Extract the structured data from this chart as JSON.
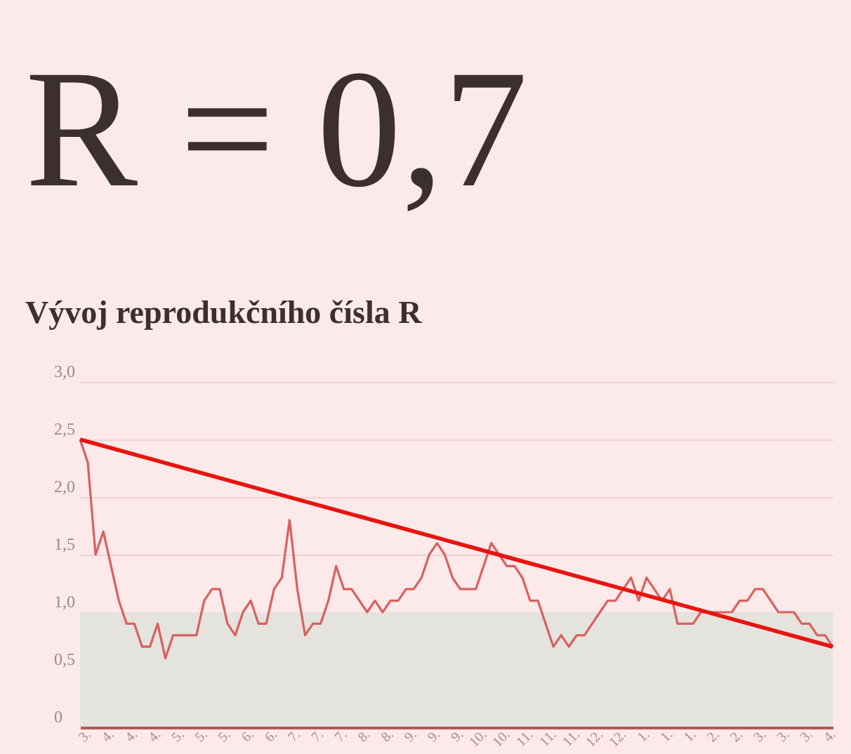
{
  "chart_data": {
    "type": "line",
    "title": "R = 0,7",
    "subtitle": "Vývoj reprodukčního čísla R",
    "categories": [
      null,
      "3.",
      null,
      null,
      "4.",
      null,
      null,
      "4.",
      null,
      null,
      "4.",
      null,
      null,
      "5.",
      null,
      null,
      "5.",
      null,
      null,
      "5.",
      null,
      null,
      "6.",
      null,
      null,
      "6.",
      null,
      null,
      "7.",
      null,
      null,
      "7.",
      null,
      null,
      "7.",
      null,
      null,
      "8.",
      null,
      null,
      "8.",
      null,
      null,
      "9.",
      null,
      null,
      "9.",
      null,
      null,
      "9.",
      null,
      null,
      "10.",
      null,
      null,
      "10.",
      null,
      null,
      "11.",
      null,
      null,
      "11.",
      null,
      null,
      "11.",
      null,
      null,
      "12.",
      null,
      null,
      "12.",
      null,
      null,
      "1.",
      null,
      null,
      "1.",
      null,
      null,
      "1.",
      null,
      null,
      "2.",
      null,
      null,
      "2.",
      null,
      null,
      "3.",
      null,
      null,
      "3.",
      null,
      null,
      "3.",
      null,
      null,
      "4."
    ],
    "ylim": [
      0,
      3
    ],
    "yticks": [
      0,
      {
        "value": 0.5,
        "label": "0,5"
      },
      {
        "value": 1,
        "label": "1,0"
      },
      {
        "value": 1.5,
        "label": "1,5"
      },
      {
        "value": 2,
        "label": "2,0"
      },
      {
        "value": 2.5,
        "label": "2,5"
      },
      {
        "value": 3,
        "label": "3,0"
      }
    ],
    "grid": "y",
    "line_style": "solid",
    "marker": "none",
    "bands": [
      {
        "axis": "y",
        "from": 0,
        "to": 1,
        "color": "#e5e3de"
      }
    ],
    "series": [
      {
        "color": "#d9605e",
        "values": [
          2.5,
          2.3,
          1.5,
          1.7,
          1.4,
          1.1,
          0.9,
          0.9,
          0.7,
          0.7,
          0.9,
          0.6,
          0.8,
          0.8,
          0.8,
          0.8,
          1.1,
          1.2,
          1.2,
          0.9,
          0.8,
          1.0,
          1.1,
          0.9,
          0.9,
          1.2,
          1.3,
          1.8,
          1.2,
          0.8,
          0.9,
          0.9,
          1.1,
          1.4,
          1.2,
          1.2,
          1.1,
          1.0,
          1.1,
          1.0,
          1.1,
          1.1,
          1.2,
          1.2,
          1.3,
          1.5,
          1.6,
          1.5,
          1.3,
          1.2,
          1.2,
          1.2,
          1.4,
          1.6,
          1.5,
          1.4,
          1.4,
          1.3,
          1.1,
          1.1,
          0.9,
          0.7,
          0.8,
          0.7,
          0.8,
          0.8,
          0.9,
          1.0,
          1.1,
          1.1,
          1.2,
          1.3,
          1.1,
          1.3,
          1.2,
          1.1,
          1.2,
          0.9,
          0.9,
          0.9,
          1.0,
          1.0,
          1.0,
          1.0,
          1.0,
          1.1,
          1.1,
          1.2,
          1.2,
          1.1,
          1.0,
          1.0,
          1.0,
          0.9,
          0.9,
          0.8,
          0.8,
          0.7
        ]
      },
      {
        "type": "line",
        "color": "#e8140f",
        "values": [
          2.5,
          null,
          null,
          null,
          null,
          null,
          null,
          null,
          null,
          null,
          null,
          null,
          null,
          null,
          null,
          null,
          null,
          null,
          null,
          null,
          null,
          null,
          null,
          null,
          null,
          null,
          null,
          null,
          null,
          null,
          null,
          null,
          null,
          null,
          null,
          null,
          null,
          null,
          null,
          null,
          null,
          null,
          null,
          null,
          null,
          null,
          null,
          null,
          null,
          null,
          null,
          null,
          null,
          null,
          null,
          null,
          null,
          null,
          null,
          null,
          null,
          null,
          null,
          null,
          null,
          null,
          null,
          null,
          null,
          null,
          null,
          null,
          null,
          null,
          null,
          null,
          null,
          null,
          null,
          null,
          null,
          null,
          null,
          null,
          null,
          null,
          null,
          null,
          null,
          null,
          null,
          null,
          null,
          null,
          null,
          null,
          null,
          0.7
        ]
      }
    ]
  }
}
